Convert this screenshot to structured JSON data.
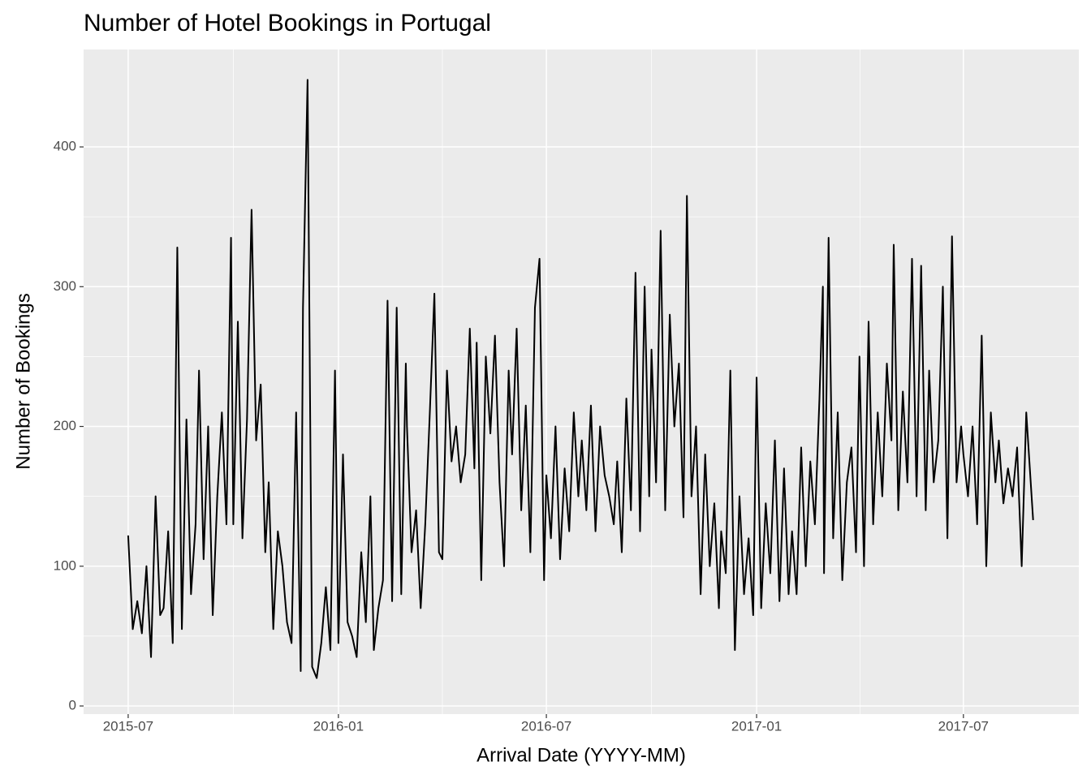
{
  "chart_data": {
    "type": "line",
    "title": "Number of Hotel Bookings in Portugal",
    "x_label": "Arrival Date (YYYY-MM)",
    "y_label": "Number of Bookings",
    "color": "#000000",
    "grid": true,
    "xlim": [
      "2015-05-23",
      "2017-10-10"
    ],
    "xticks": [
      {
        "value": "2015-07-01",
        "label": "2015-07"
      },
      {
        "value": "2016-01-01",
        "label": "2016-01"
      },
      {
        "value": "2016-07-01",
        "label": "2016-07"
      },
      {
        "value": "2017-01-01",
        "label": "2017-01"
      },
      {
        "value": "2017-07-01",
        "label": "2017-07"
      }
    ],
    "ylim": [
      -5.8,
      469.7
    ],
    "yticks": [
      0,
      100,
      200,
      300,
      400
    ],
    "x": [
      "2015-07-01",
      "2015-07-05",
      "2015-07-09",
      "2015-07-13",
      "2015-07-17",
      "2015-07-21",
      "2015-07-25",
      "2015-07-29",
      "2015-08-01",
      "2015-08-05",
      "2015-08-09",
      "2015-08-13",
      "2015-08-17",
      "2015-08-21",
      "2015-08-25",
      "2015-08-29",
      "2015-09-01",
      "2015-09-05",
      "2015-09-09",
      "2015-09-13",
      "2015-09-17",
      "2015-09-21",
      "2015-09-25",
      "2015-09-29",
      "2015-10-01",
      "2015-10-05",
      "2015-10-09",
      "2015-10-13",
      "2015-10-17",
      "2015-10-21",
      "2015-10-25",
      "2015-10-29",
      "2015-11-01",
      "2015-11-05",
      "2015-11-09",
      "2015-11-13",
      "2015-11-17",
      "2015-11-21",
      "2015-11-25",
      "2015-11-29",
      "2015-12-01",
      "2015-12-05",
      "2015-12-09",
      "2015-12-13",
      "2015-12-17",
      "2015-12-21",
      "2015-12-25",
      "2015-12-29",
      "2016-01-01",
      "2016-01-05",
      "2016-01-09",
      "2016-01-13",
      "2016-01-17",
      "2016-01-21",
      "2016-01-25",
      "2016-01-29",
      "2016-02-01",
      "2016-02-05",
      "2016-02-09",
      "2016-02-13",
      "2016-02-17",
      "2016-02-21",
      "2016-02-25",
      "2016-02-29",
      "2016-03-01",
      "2016-03-05",
      "2016-03-09",
      "2016-03-13",
      "2016-03-17",
      "2016-03-21",
      "2016-03-25",
      "2016-03-29",
      "2016-04-01",
      "2016-04-05",
      "2016-04-09",
      "2016-04-13",
      "2016-04-17",
      "2016-04-21",
      "2016-04-25",
      "2016-04-29",
      "2016-05-01",
      "2016-05-05",
      "2016-05-09",
      "2016-05-13",
      "2016-05-17",
      "2016-05-21",
      "2016-05-25",
      "2016-05-29",
      "2016-06-01",
      "2016-06-05",
      "2016-06-09",
      "2016-06-13",
      "2016-06-17",
      "2016-06-21",
      "2016-06-25",
      "2016-06-29",
      "2016-07-01",
      "2016-07-05",
      "2016-07-09",
      "2016-07-13",
      "2016-07-17",
      "2016-07-21",
      "2016-07-25",
      "2016-07-29",
      "2016-08-01",
      "2016-08-05",
      "2016-08-09",
      "2016-08-13",
      "2016-08-17",
      "2016-08-21",
      "2016-08-25",
      "2016-08-29",
      "2016-09-01",
      "2016-09-05",
      "2016-09-09",
      "2016-09-13",
      "2016-09-17",
      "2016-09-21",
      "2016-09-25",
      "2016-09-29",
      "2016-10-01",
      "2016-10-05",
      "2016-10-09",
      "2016-10-13",
      "2016-10-17",
      "2016-10-21",
      "2016-10-25",
      "2016-10-29",
      "2016-11-01",
      "2016-11-05",
      "2016-11-09",
      "2016-11-13",
      "2016-11-17",
      "2016-11-21",
      "2016-11-25",
      "2016-11-29",
      "2016-12-01",
      "2016-12-05",
      "2016-12-09",
      "2016-12-13",
      "2016-12-17",
      "2016-12-21",
      "2016-12-25",
      "2016-12-29",
      "2017-01-01",
      "2017-01-05",
      "2017-01-09",
      "2017-01-13",
      "2017-01-17",
      "2017-01-21",
      "2017-01-25",
      "2017-01-29",
      "2017-02-01",
      "2017-02-05",
      "2017-02-09",
      "2017-02-13",
      "2017-02-17",
      "2017-02-21",
      "2017-02-25",
      "2017-02-28",
      "2017-03-01",
      "2017-03-05",
      "2017-03-09",
      "2017-03-13",
      "2017-03-17",
      "2017-03-21",
      "2017-03-25",
      "2017-03-29",
      "2017-04-01",
      "2017-04-05",
      "2017-04-09",
      "2017-04-13",
      "2017-04-17",
      "2017-04-21",
      "2017-04-25",
      "2017-04-29",
      "2017-05-01",
      "2017-05-05",
      "2017-05-09",
      "2017-05-13",
      "2017-05-17",
      "2017-05-21",
      "2017-05-25",
      "2017-05-29",
      "2017-06-01",
      "2017-06-05",
      "2017-06-09",
      "2017-06-13",
      "2017-06-17",
      "2017-06-21",
      "2017-06-25",
      "2017-06-29",
      "2017-07-01",
      "2017-07-05",
      "2017-07-09",
      "2017-07-13",
      "2017-07-17",
      "2017-07-21",
      "2017-07-25",
      "2017-07-29",
      "2017-08-01",
      "2017-08-05",
      "2017-08-09",
      "2017-08-13",
      "2017-08-17",
      "2017-08-21",
      "2017-08-25",
      "2017-08-31"
    ],
    "values": [
      122,
      55,
      75,
      52,
      100,
      35,
      150,
      65,
      70,
      125,
      45,
      328,
      55,
      205,
      80,
      130,
      240,
      105,
      200,
      65,
      150,
      210,
      130,
      335,
      130,
      275,
      120,
      205,
      355,
      190,
      230,
      110,
      160,
      55,
      125,
      100,
      60,
      45,
      210,
      25,
      285,
      448,
      28,
      20,
      45,
      85,
      40,
      240,
      45,
      180,
      60,
      50,
      35,
      110,
      60,
      150,
      40,
      70,
      90,
      290,
      75,
      285,
      80,
      245,
      200,
      110,
      140,
      70,
      130,
      210,
      295,
      110,
      105,
      240,
      175,
      200,
      160,
      180,
      270,
      170,
      260,
      90,
      250,
      195,
      265,
      160,
      100,
      240,
      180,
      270,
      140,
      215,
      110,
      285,
      320,
      90,
      165,
      120,
      200,
      105,
      170,
      125,
      210,
      150,
      190,
      140,
      215,
      125,
      200,
      165,
      150,
      130,
      175,
      110,
      220,
      140,
      310,
      125,
      300,
      150,
      255,
      160,
      340,
      140,
      280,
      200,
      245,
      135,
      365,
      150,
      200,
      80,
      180,
      100,
      145,
      70,
      125,
      95,
      240,
      40,
      150,
      80,
      120,
      65,
      235,
      70,
      145,
      95,
      190,
      75,
      170,
      80,
      125,
      80,
      185,
      100,
      175,
      130,
      220,
      300,
      95,
      335,
      120,
      210,
      90,
      160,
      185,
      110,
      250,
      100,
      275,
      130,
      210,
      150,
      245,
      190,
      330,
      140,
      225,
      160,
      320,
      150,
      315,
      140,
      240,
      160,
      190,
      300,
      120,
      336,
      160,
      200,
      180,
      150,
      200,
      130,
      265,
      100,
      210,
      160,
      190,
      145,
      170,
      150,
      185,
      100,
      210,
      133
    ]
  }
}
